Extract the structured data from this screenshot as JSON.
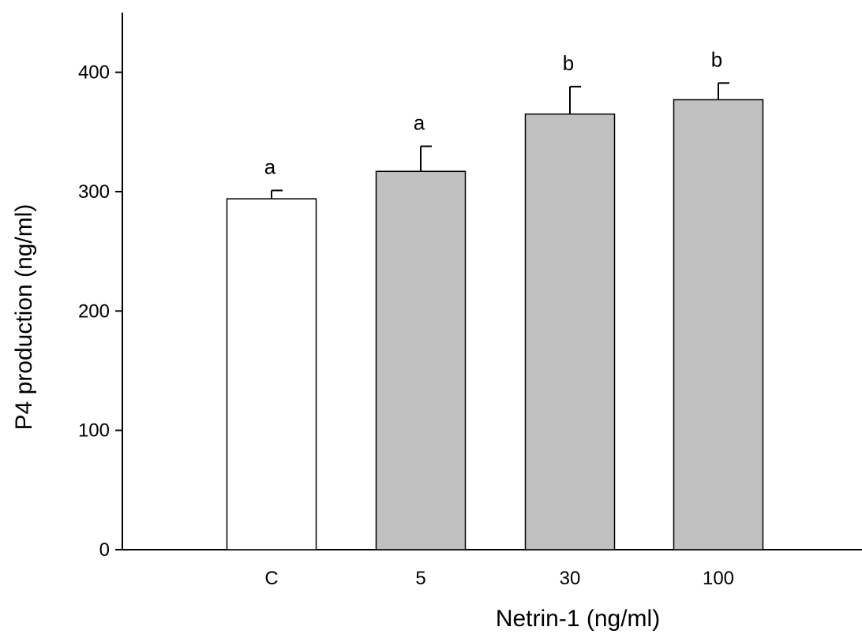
{
  "chart_data": {
    "type": "bar",
    "title": "",
    "xlabel": "Netrin-1 (ng/ml)",
    "ylabel": "P4 production (ng/ml)",
    "ylim": [
      0,
      450
    ],
    "yticks": [
      0,
      100,
      200,
      300,
      400
    ],
    "categories": [
      "C",
      "5",
      "30",
      "100"
    ],
    "values": [
      294,
      317,
      365,
      377
    ],
    "errors": [
      7,
      21,
      23,
      14
    ],
    "significance_letters": [
      "a",
      "a",
      "b",
      "b"
    ],
    "bar_colors": [
      "#ffffff",
      "#c0c0c0",
      "#c0c0c0",
      "#c0c0c0"
    ],
    "grid": false,
    "legend": "none"
  }
}
